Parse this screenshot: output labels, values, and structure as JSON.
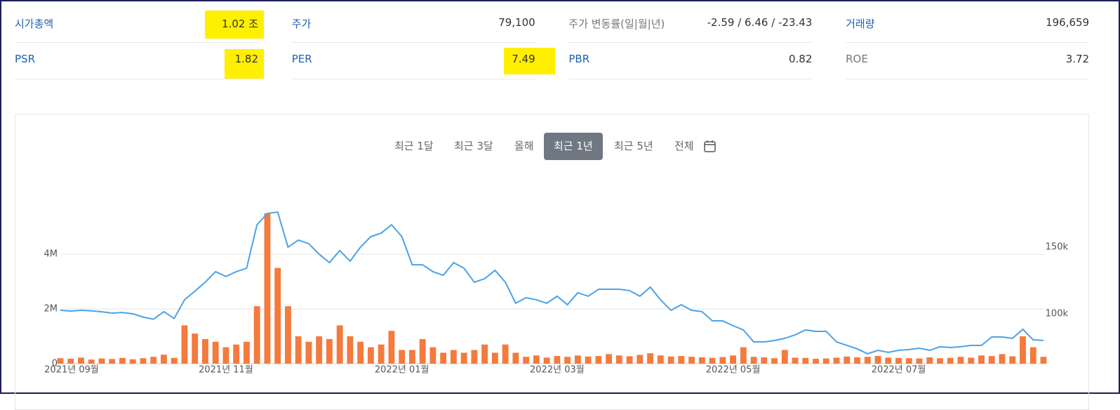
{
  "stats": [
    {
      "label": "시가총액",
      "value": "1.02 조"
    },
    {
      "label": "주가",
      "value": "79,100"
    },
    {
      "label": "주가 변동률(일|월|년)",
      "value": "-2.59 / 6.46 / -23.43"
    },
    {
      "label": "거래량",
      "value": "196,659"
    },
    {
      "label": "PSR",
      "value": "1.82"
    },
    {
      "label": "PER",
      "value": "7.49"
    },
    {
      "label": "PBR",
      "value": "0.82"
    },
    {
      "label": "ROE",
      "value": "3.72"
    }
  ],
  "periods": [
    "최근 1달",
    "최근 3달",
    "올해",
    "최근 1년",
    "최근 5년",
    "전체"
  ],
  "chart_data": {
    "type": "bar",
    "categories": [
      "2021년 09월",
      null,
      null,
      null,
      null,
      null,
      null,
      null,
      null,
      null,
      null,
      null,
      null,
      null,
      null,
      null,
      "2021년 11월",
      null,
      null,
      null,
      null,
      null,
      null,
      null,
      null,
      null,
      null,
      null,
      null,
      null,
      null,
      null,
      null,
      "2022년 01월",
      null,
      null,
      null,
      null,
      null,
      null,
      null,
      null,
      null,
      null,
      null,
      null,
      null,
      null,
      "2022년 03월",
      null,
      null,
      null,
      null,
      null,
      null,
      null,
      null,
      null,
      null,
      null,
      null,
      null,
      null,
      null,
      null,
      "2022년 05월",
      null,
      null,
      null,
      null,
      null,
      null,
      null,
      null,
      null,
      null,
      null,
      null,
      null,
      null,
      null,
      "2022년 07월",
      null,
      null,
      null,
      null,
      null,
      null,
      null,
      null,
      null,
      null,
      null,
      null,
      null,
      null
    ],
    "series": [
      {
        "type": "bar",
        "color": "#f47a3d",
        "values": [
          200000,
          180000,
          220000,
          150000,
          190000,
          170000,
          210000,
          160000,
          200000,
          250000,
          330000,
          210000,
          1400000,
          1100000,
          900000,
          800000,
          600000,
          700000,
          800000,
          2100000,
          5500000,
          3500000,
          2100000,
          1000000,
          800000,
          1000000,
          900000,
          1400000,
          1000000,
          800000,
          600000,
          700000,
          1200000,
          500000,
          500000,
          900000,
          600000,
          400000,
          500000,
          400000,
          500000,
          700000,
          400000,
          700000,
          400000,
          250000,
          300000,
          220000,
          280000,
          250000,
          300000,
          260000,
          280000,
          350000,
          300000,
          270000,
          320000,
          380000,
          300000,
          260000,
          280000,
          250000,
          230000,
          210000,
          240000,
          300000,
          600000,
          250000,
          230000,
          200000,
          500000,
          220000,
          210000,
          180000,
          190000,
          220000,
          260000,
          230000,
          250000,
          280000,
          220000,
          210000,
          200000,
          190000,
          230000,
          200000,
          210000,
          250000,
          220000,
          300000,
          280000,
          350000,
          270000,
          1000000,
          600000,
          250000
        ]
      },
      {
        "type": "line",
        "axis": "y2",
        "color": "#4aa3e6",
        "values": [
          102600,
          102000,
          102600,
          102200,
          101500,
          100500,
          101000,
          100000,
          97500,
          96000,
          101600,
          96500,
          110500,
          117000,
          123700,
          131600,
          128000,
          131600,
          134200,
          166800,
          175300,
          176300,
          150000,
          155300,
          152600,
          144700,
          138400,
          147400,
          139500,
          150000,
          157900,
          160500,
          166800,
          157900,
          136800,
          136800,
          131600,
          128900,
          138400,
          134200,
          123700,
          126300,
          132600,
          123700,
          107900,
          112100,
          110500,
          107900,
          113200,
          106800,
          115800,
          113200,
          118400,
          118400,
          118400,
          117400,
          113200,
          120000,
          110500,
          102600,
          106800,
          102600,
          101600,
          94700,
          94700,
          91100,
          87900,
          78900,
          78900,
          80000,
          81600,
          84200,
          87900,
          86800,
          86800,
          78900,
          76300,
          73700,
          70000,
          72600,
          71100,
          72600,
          73200,
          74200,
          72600,
          75300,
          74700,
          75300,
          76300,
          76300,
          82600,
          82600,
          81600,
          88400,
          80500,
          80000
        ]
      }
    ],
    "ylim": [
      0,
      5800000
    ],
    "yticks": [
      0,
      {
        "value": 2000000,
        "label": "2M"
      },
      {
        "value": 4000000,
        "label": "4M"
      }
    ],
    "y2lim": [
      62600,
      181600
    ],
    "y2ticks": [
      {
        "value": 100000,
        "label": "100k"
      },
      {
        "value": 150000,
        "label": "150k"
      }
    ],
    "grid": true
  }
}
